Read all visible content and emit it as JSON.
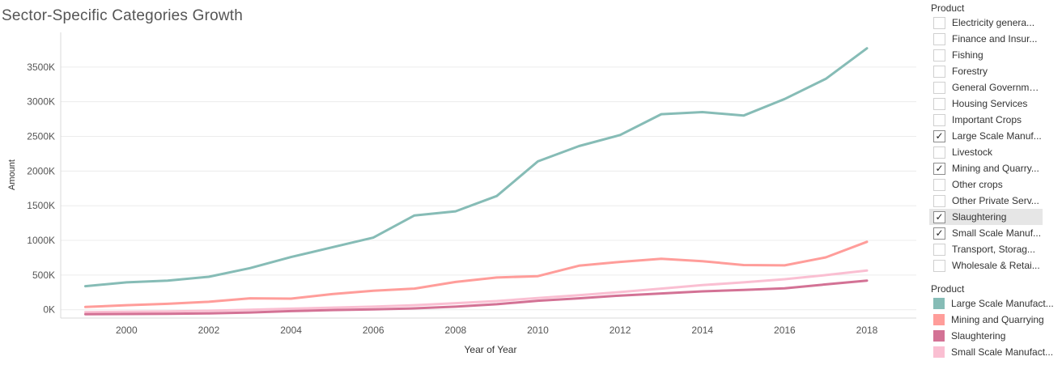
{
  "title": "Sector-Specific Categories Growth",
  "filter": {
    "title": "Product",
    "items": [
      {
        "label": "Electricity genera...",
        "checked": false
      },
      {
        "label": "Finance and Insur...",
        "checked": false
      },
      {
        "label": "Fishing",
        "checked": false
      },
      {
        "label": "Forestry",
        "checked": false
      },
      {
        "label": "General Governme...",
        "checked": false
      },
      {
        "label": "Housing Services",
        "checked": false
      },
      {
        "label": "Important Crops",
        "checked": false
      },
      {
        "label": "Large Scale Manuf...",
        "checked": true
      },
      {
        "label": "Livestock",
        "checked": false
      },
      {
        "label": "Mining and Quarry...",
        "checked": true
      },
      {
        "label": "Other crops",
        "checked": false
      },
      {
        "label": "Other Private Serv...",
        "checked": false
      },
      {
        "label": "Slaughtering",
        "checked": true,
        "highlighted": true
      },
      {
        "label": "Small Scale Manuf...",
        "checked": true
      },
      {
        "label": "Transport, Storag...",
        "checked": false
      },
      {
        "label": "Wholesale & Retai...",
        "checked": false
      }
    ]
  },
  "legend": {
    "title": "Product",
    "items": [
      {
        "label": "Large Scale Manufact...",
        "color": "#86bcb6"
      },
      {
        "label": "Mining and Quarrying",
        "color": "#ff9d9a"
      },
      {
        "label": "Slaughtering",
        "color": "#d37295"
      },
      {
        "label": "Small Scale Manufact...",
        "color": "#fabfd2"
      }
    ]
  },
  "chart_data": {
    "type": "line",
    "title": "Sector-Specific Categories Growth",
    "xlabel": "Year of Year",
    "ylabel": "Amount",
    "xlim": [
      1998.4,
      2019.2
    ],
    "ylim": [
      -120,
      4000
    ],
    "x_ticks": [
      2000,
      2002,
      2004,
      2006,
      2008,
      2010,
      2012,
      2014,
      2016,
      2018
    ],
    "y_ticks": [
      0,
      500,
      1000,
      1500,
      2000,
      2500,
      3000,
      3500
    ],
    "y_tick_labels": [
      "0K",
      "500K",
      "1000K",
      "1500K",
      "2000K",
      "2500K",
      "3000K",
      "3500K"
    ],
    "grid": "horizontal",
    "legend_position": "right",
    "x": [
      1999,
      2000,
      2001,
      2002,
      2003,
      2004,
      2005,
      2006,
      2007,
      2008,
      2009,
      2010,
      2011,
      2012,
      2013,
      2014,
      2015,
      2016,
      2017,
      2018
    ],
    "series": [
      {
        "name": "Large Scale Manufact...",
        "color": "#86bcb6",
        "values": [
          340,
          395,
          420,
          475,
          600,
          760,
          900,
          1040,
          1360,
          1420,
          1640,
          2140,
          2360,
          2520,
          2820,
          2850,
          2800,
          3040,
          3330,
          3770
        ]
      },
      {
        "name": "Mining and Quarrying",
        "color": "#ff9d9a",
        "values": [
          40,
          65,
          85,
          115,
          165,
          160,
          225,
          275,
          305,
          400,
          465,
          485,
          635,
          690,
          735,
          700,
          645,
          640,
          755,
          980
        ]
      },
      {
        "name": "Slaughtering",
        "color": "#d37295",
        "values": [
          -65,
          -62,
          -58,
          -52,
          -40,
          -20,
          -5,
          5,
          20,
          45,
          80,
          130,
          165,
          205,
          235,
          265,
          285,
          310,
          365,
          420
        ]
      },
      {
        "name": "Small Scale Manufact...",
        "color": "#fabfd2",
        "values": [
          -35,
          -30,
          -25,
          -15,
          0,
          15,
          30,
          45,
          65,
          95,
          125,
          170,
          210,
          255,
          305,
          355,
          395,
          440,
          500,
          565
        ]
      }
    ]
  }
}
